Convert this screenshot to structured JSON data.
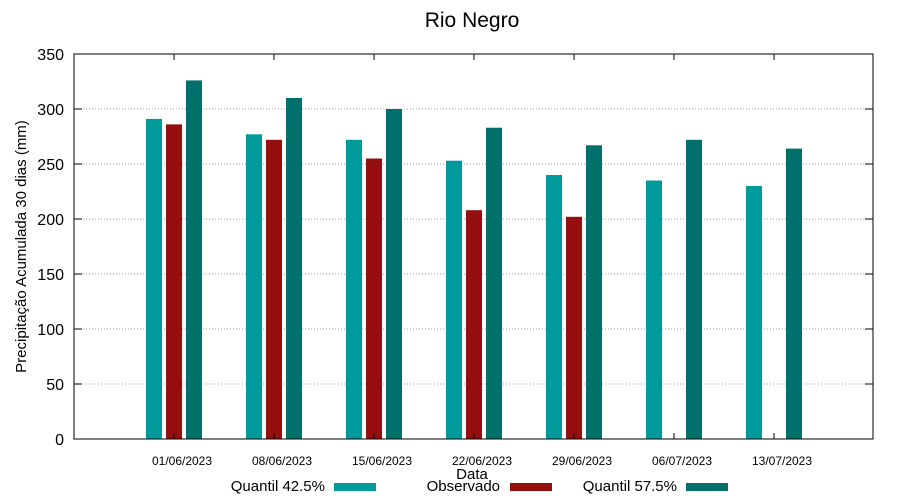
{
  "chart_data": {
    "type": "bar",
    "title": "Rio Negro",
    "xlabel": "Data",
    "ylabel": "Precipitação Acumulada 30 dias (mm)",
    "ylim": [
      0,
      350
    ],
    "yticks": [
      0,
      50,
      100,
      150,
      200,
      250,
      300,
      350
    ],
    "grid": true,
    "legend_position": "bottom",
    "categories": [
      "01/06/2023",
      "08/06/2023",
      "15/06/2023",
      "22/06/2023",
      "29/06/2023",
      "06/07/2023",
      "13/07/2023"
    ],
    "series": [
      {
        "name": "Quantil 42.5%",
        "color": "#009a9a",
        "values": [
          291,
          277,
          272,
          253,
          240,
          235,
          230
        ]
      },
      {
        "name": "Observado",
        "color": "#960f0f",
        "values": [
          286,
          272,
          255,
          208,
          202,
          null,
          null
        ]
      },
      {
        "name": "Quantil 57.5%",
        "color": "#00706a",
        "values": [
          326,
          310,
          300,
          283,
          267,
          272,
          264
        ]
      }
    ]
  }
}
